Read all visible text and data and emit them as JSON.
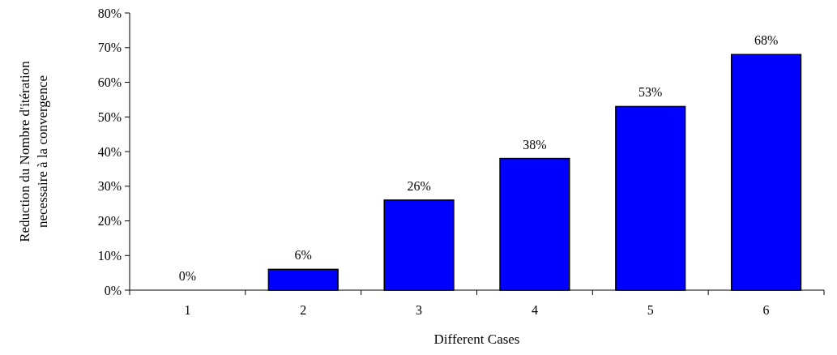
{
  "chart_data": {
    "type": "bar",
    "xlabel": "Different Cases",
    "ylabel": "Reduction du Nombre d'itération\nnecessaire à la convergence",
    "categories": [
      "1",
      "2",
      "3",
      "4",
      "5",
      "6"
    ],
    "values": [
      0,
      6,
      26,
      38,
      53,
      68
    ],
    "color": "#0000ff",
    "value_labels": [
      "0%",
      "6%",
      "26%",
      "38%",
      "53%",
      "68%"
    ],
    "ylim": [
      0,
      80
    ],
    "yticks": [
      {
        "value": 0,
        "label": "0%"
      },
      {
        "value": 10,
        "label": "10%"
      },
      {
        "value": 20,
        "label": "20%"
      },
      {
        "value": 30,
        "label": "30%"
      },
      {
        "value": 40,
        "label": "40%"
      },
      {
        "value": 50,
        "label": "50%"
      },
      {
        "value": 60,
        "label": "60%"
      },
      {
        "value": 70,
        "label": "70%"
      },
      {
        "value": 80,
        "label": "80%"
      }
    ]
  }
}
